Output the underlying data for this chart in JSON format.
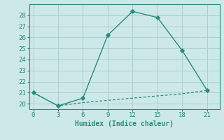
{
  "xlabel": "Humidex (Indice chaleur)",
  "x": [
    0,
    3,
    6,
    9,
    12,
    15,
    18,
    21
  ],
  "line1_y": [
    21.0,
    19.8,
    20.5,
    26.2,
    28.35,
    27.8,
    24.8,
    21.2
  ],
  "line2_y": [
    21.0,
    19.8,
    20.1,
    20.3,
    20.5,
    20.7,
    20.9,
    21.2
  ],
  "line_color": "#2e8b7a",
  "bg_color": "#cce8e8",
  "grid_color": "#aed0d0",
  "ylim": [
    19.5,
    29.0
  ],
  "xlim": [
    -0.5,
    22.5
  ],
  "yticks": [
    20,
    21,
    22,
    23,
    24,
    25,
    26,
    27,
    28
  ],
  "xticks": [
    0,
    3,
    6,
    9,
    12,
    15,
    18,
    21
  ]
}
